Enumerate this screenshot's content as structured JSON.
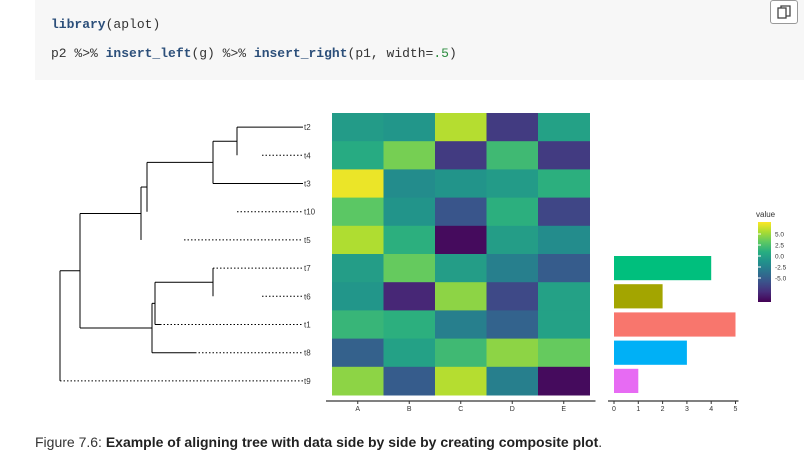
{
  "code": {
    "line1": {
      "fn": "library",
      "open": "(",
      "arg": "aplot",
      "close": ")"
    },
    "line2": {
      "a": "p2 ",
      "pipe1": "%>% ",
      "fn1": "insert_left",
      "args1": "(g) ",
      "pipe2": "%>% ",
      "fn2": "insert_right",
      "args2a": "(p1, width=",
      "num": ".5",
      "args2b": ")"
    }
  },
  "copy_button": {
    "icon": "copy-icon"
  },
  "figure": {
    "tips": [
      "t2",
      "t4",
      "t3",
      "t10",
      "t5",
      "t7",
      "t6",
      "t1",
      "t8",
      "t9"
    ],
    "heatmap": {
      "columns": [
        "A",
        "B",
        "C",
        "D",
        "E"
      ],
      "values": [
        [
          0.5,
          0.3,
          4.3,
          -3.6,
          0.8
        ],
        [
          1.3,
          3.2,
          -3.6,
          2.0,
          -3.6
        ],
        [
          5.2,
          -0.2,
          0.2,
          0.5,
          1.5
        ],
        [
          2.7,
          0.2,
          -2.6,
          1.5,
          -3.2
        ],
        [
          4.2,
          1.5,
          -5.2,
          0.6,
          -0.2
        ],
        [
          0.6,
          2.9,
          0.6,
          -0.8,
          -2.3
        ],
        [
          0.3,
          -4.3,
          3.6,
          -3.1,
          0.8
        ],
        [
          1.8,
          1.5,
          -0.8,
          -2.0,
          0.8
        ],
        [
          -2.1,
          0.8,
          2.0,
          3.6,
          2.9
        ],
        [
          3.6,
          -2.3,
          4.3,
          -0.8,
          -5.2
        ]
      ],
      "legend": {
        "title": "value",
        "ticks": [
          "5.0",
          "2.5",
          "0.0",
          "-2.5",
          "-5.0"
        ]
      }
    },
    "bars": {
      "values": [
        null,
        null,
        null,
        null,
        null,
        4,
        2,
        5,
        3,
        1
      ],
      "colors": [
        null,
        null,
        null,
        null,
        null,
        "#00BF7D",
        "#A3A500",
        "#F8766D",
        "#00B0F6",
        "#E76BF3"
      ],
      "axis_ticks": [
        "0",
        "1",
        "2",
        "3",
        "4",
        "5"
      ]
    }
  },
  "caption": {
    "prefix": "Figure 7.6: ",
    "bold": "Example of aligning tree with data side by side by creating composite plot",
    "suffix": "."
  }
}
